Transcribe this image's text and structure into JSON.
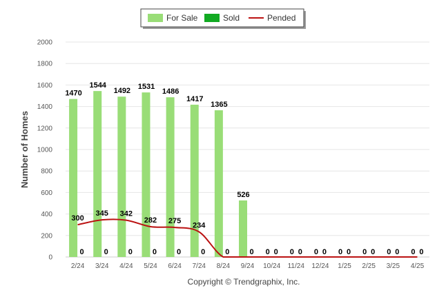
{
  "chart_data": {
    "type": "bar",
    "ylabel": "Number of Homes",
    "ylim": [
      0,
      2000
    ],
    "yticks": [
      "0",
      "200",
      "400",
      "600",
      "800",
      "1000",
      "1200",
      "1400",
      "1600",
      "1800",
      "2000"
    ],
    "categories": [
      "2/24",
      "3/24",
      "4/24",
      "5/24",
      "6/24",
      "7/24",
      "8/24",
      "9/24",
      "10/24",
      "11/24",
      "12/24",
      "1/25",
      "2/25",
      "3/25",
      "4/25"
    ],
    "series": [
      {
        "name": "For Sale",
        "type": "bar",
        "color": "#99dd77",
        "values": [
          1470,
          1544,
          1492,
          1531,
          1486,
          1417,
          1365,
          526,
          0,
          0,
          0,
          0,
          0,
          0,
          0
        ],
        "labels": [
          "1470",
          "1544",
          "1492",
          "1531",
          "1486",
          "1417",
          "1365",
          "526",
          "0",
          "0",
          "0",
          "0",
          "0",
          "0",
          "0"
        ]
      },
      {
        "name": "Sold",
        "type": "bar",
        "color": "#11aa22",
        "values": [
          0,
          0,
          0,
          0,
          0,
          0,
          0,
          0,
          0,
          0,
          0,
          0,
          0,
          0,
          0
        ],
        "labels": [
          "0",
          "0",
          "0",
          "0",
          "0",
          "0",
          "0",
          "0",
          "0",
          "0",
          "0",
          "0",
          "0",
          "0",
          "0"
        ]
      },
      {
        "name": "Pended",
        "type": "line",
        "color": "#bb1111",
        "values": [
          300,
          345,
          342,
          282,
          275,
          234,
          0,
          0,
          0,
          0,
          0,
          0,
          0,
          0,
          0
        ],
        "labels": [
          "300",
          "345",
          "342",
          "282",
          "275",
          "234",
          "",
          "",
          "",
          "",
          "",
          "",
          "",
          "",
          ""
        ]
      }
    ],
    "legend_position": "top-center",
    "grid": true
  },
  "footer": {
    "copyright": "Copyright © Trendgraphix, Inc."
  }
}
